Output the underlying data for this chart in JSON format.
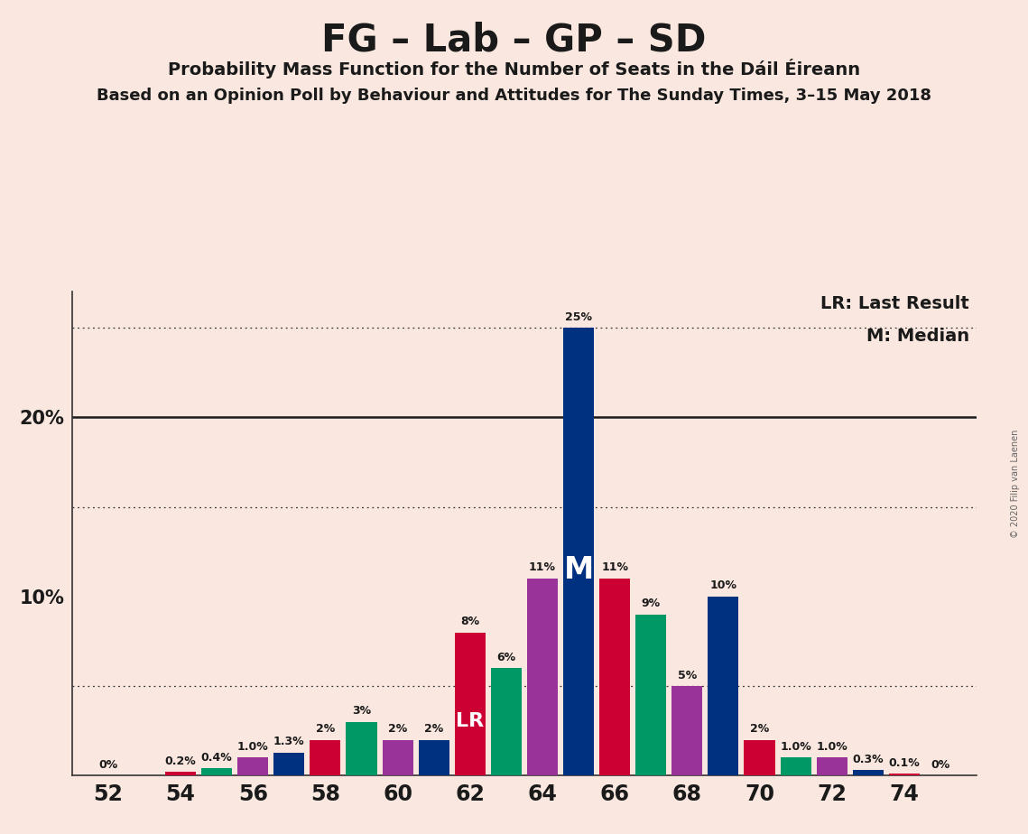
{
  "title": "FG – Lab – GP – SD",
  "subtitle": "Probability Mass Function for the Number of Seats in the Dáil Éireann",
  "subtitle2": "Based on an Opinion Poll by Behaviour and Attitudes for The Sunday Times, 3–15 May 2018",
  "copyright": "© 2020 Filip van Laenen",
  "legend_lr": "LR: Last Result",
  "legend_m": "M: Median",
  "background_color": "#FAE8E0",
  "bars": [
    {
      "seat": 52,
      "value": 0.0,
      "color": "#CC0033",
      "label": "0%",
      "is_lr": false,
      "is_median": false
    },
    {
      "seat": 53,
      "value": 0.0,
      "color": "#009966",
      "label": "",
      "is_lr": false,
      "is_median": false
    },
    {
      "seat": 54,
      "value": 0.2,
      "color": "#CC0033",
      "label": "0.2%",
      "is_lr": false,
      "is_median": false
    },
    {
      "seat": 55,
      "value": 0.4,
      "color": "#009966",
      "label": "0.4%",
      "is_lr": false,
      "is_median": false
    },
    {
      "seat": 56,
      "value": 1.0,
      "color": "#993399",
      "label": "1.0%",
      "is_lr": false,
      "is_median": false
    },
    {
      "seat": 57,
      "value": 1.3,
      "color": "#003080",
      "label": "1.3%",
      "is_lr": false,
      "is_median": false
    },
    {
      "seat": 58,
      "value": 2.0,
      "color": "#CC0033",
      "label": "2%",
      "is_lr": false,
      "is_median": false
    },
    {
      "seat": 59,
      "value": 3.0,
      "color": "#009966",
      "label": "3%",
      "is_lr": false,
      "is_median": false
    },
    {
      "seat": 60,
      "value": 2.0,
      "color": "#993399",
      "label": "2%",
      "is_lr": false,
      "is_median": false
    },
    {
      "seat": 61,
      "value": 2.0,
      "color": "#003080",
      "label": "2%",
      "is_lr": false,
      "is_median": false
    },
    {
      "seat": 62,
      "value": 8.0,
      "color": "#CC0033",
      "label": "8%",
      "is_lr": true,
      "is_median": false
    },
    {
      "seat": 63,
      "value": 6.0,
      "color": "#009966",
      "label": "6%",
      "is_lr": false,
      "is_median": false
    },
    {
      "seat": 64,
      "value": 11.0,
      "color": "#993399",
      "label": "11%",
      "is_lr": false,
      "is_median": false
    },
    {
      "seat": 65,
      "value": 25.0,
      "color": "#003080",
      "label": "25%",
      "is_lr": false,
      "is_median": true
    },
    {
      "seat": 66,
      "value": 11.0,
      "color": "#CC0033",
      "label": "11%",
      "is_lr": false,
      "is_median": false
    },
    {
      "seat": 67,
      "value": 9.0,
      "color": "#009966",
      "label": "9%",
      "is_lr": false,
      "is_median": false
    },
    {
      "seat": 68,
      "value": 5.0,
      "color": "#993399",
      "label": "5%",
      "is_lr": false,
      "is_median": false
    },
    {
      "seat": 69,
      "value": 10.0,
      "color": "#003080",
      "label": "10%",
      "is_lr": false,
      "is_median": false
    },
    {
      "seat": 70,
      "value": 2.0,
      "color": "#CC0033",
      "label": "2%",
      "is_lr": false,
      "is_median": false
    },
    {
      "seat": 71,
      "value": 1.0,
      "color": "#009966",
      "label": "1.0%",
      "is_lr": false,
      "is_median": false
    },
    {
      "seat": 72,
      "value": 1.0,
      "color": "#993399",
      "label": "1.0%",
      "is_lr": false,
      "is_median": false
    },
    {
      "seat": 73,
      "value": 0.3,
      "color": "#003080",
      "label": "0.3%",
      "is_lr": false,
      "is_median": false
    },
    {
      "seat": 74,
      "value": 0.1,
      "color": "#CC0033",
      "label": "0.1%",
      "is_lr": false,
      "is_median": false
    },
    {
      "seat": 75,
      "value": 0.0,
      "color": "#009966",
      "label": "0%",
      "is_lr": false,
      "is_median": false
    }
  ],
  "ylim": [
    0,
    27
  ],
  "solid_lines": [
    20.0
  ],
  "dotted_lines": [
    5.0,
    15.0,
    25.0
  ],
  "bar_width": 0.85,
  "xlim": [
    51.0,
    76.0
  ],
  "xticks": [
    52,
    54,
    56,
    58,
    60,
    62,
    64,
    66,
    68,
    70,
    72,
    74
  ]
}
